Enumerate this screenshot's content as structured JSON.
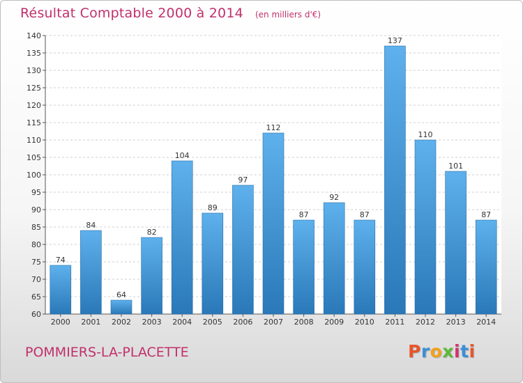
{
  "chart_data": {
    "type": "bar",
    "title": "Résultat Comptable 2000 à 2014",
    "subtitle": "(en milliers d'€)",
    "categories": [
      "2000",
      "2001",
      "2002",
      "2003",
      "2004",
      "2005",
      "2006",
      "2007",
      "2008",
      "2009",
      "2010",
      "2011",
      "2012",
      "2013",
      "2014"
    ],
    "values": [
      74,
      84,
      64,
      82,
      104,
      89,
      97,
      112,
      87,
      92,
      87,
      137,
      110,
      101,
      87
    ],
    "ylim": [
      60,
      140
    ],
    "yticks": [
      60,
      65,
      70,
      75,
      80,
      85,
      90,
      95,
      100,
      105,
      110,
      115,
      120,
      125,
      130,
      135,
      140
    ],
    "grid": true,
    "legend": "none",
    "bar_color": "#3e8fd4"
  },
  "footer": {
    "commune": "POMMIERS-LA-PLACETTE",
    "logo_text": "Proxiti",
    "logo_colors": [
      "#e8552a",
      "#3c8fd6",
      "#f2a11d",
      "#5cb83a",
      "#d3306f",
      "#3c8fd6",
      "#e8552a"
    ]
  },
  "colors": {
    "title": "#c0306a"
  }
}
